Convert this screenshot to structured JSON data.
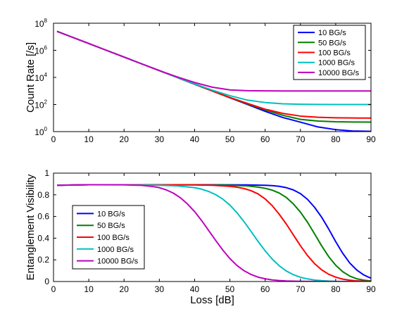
{
  "colors": [
    "#0000ff",
    "#007f00",
    "#ff0000",
    "#00bfbf",
    "#bf00bf"
  ],
  "chart_data": [
    {
      "type": "line",
      "xlabel": "",
      "ylabel": "Count Rate [/s]",
      "xlim": [
        0,
        90
      ],
      "ylim": [
        1,
        100000000
      ],
      "yscale": "log",
      "xticks": [
        0,
        10,
        20,
        30,
        40,
        50,
        60,
        70,
        80,
        90
      ],
      "yticks": [
        1,
        100,
        10000,
        1000000,
        100000000
      ],
      "ytick_labels": [
        {
          "base": "10",
          "exp": "0"
        },
        {
          "base": "10",
          "exp": "2"
        },
        {
          "base": "10",
          "exp": "4"
        },
        {
          "base": "10",
          "exp": "6"
        },
        {
          "base": "10",
          "exp": "8"
        }
      ],
      "grid": false,
      "legend_position": "top-right",
      "series": [
        {
          "name": "10 BG/s",
          "x": [
            1,
            5,
            10,
            15,
            20,
            25,
            30,
            35,
            40,
            45,
            50,
            55,
            60,
            65,
            70,
            75,
            80,
            85,
            90
          ],
          "y": [
            25118864,
            10000000,
            3162278,
            1000000,
            316228,
            100000,
            31623,
            10000,
            3162,
            1000,
            316,
            100,
            31.6,
            11.0,
            5.0,
            2.2,
            1.4,
            1.1,
            1.05
          ]
        },
        {
          "name": "50 BG/s",
          "x": [
            1,
            5,
            10,
            15,
            20,
            25,
            30,
            35,
            40,
            45,
            50,
            55,
            60,
            65,
            70,
            75,
            80,
            85,
            90
          ],
          "y": [
            25118864,
            10000000,
            3162278,
            1000000,
            316228,
            100000,
            31623,
            10000,
            3162,
            1000,
            320,
            110,
            40,
            16,
            8.0,
            6.0,
            5.3,
            5.1,
            5.0
          ]
        },
        {
          "name": "100 BG/s",
          "x": [
            1,
            5,
            10,
            15,
            20,
            25,
            30,
            35,
            40,
            45,
            50,
            55,
            60,
            65,
            70,
            75,
            80,
            85,
            90
          ],
          "y": [
            25118864,
            10000000,
            3162278,
            1000000,
            316228,
            100000,
            31623,
            10000,
            3170,
            1010,
            330,
            120,
            45,
            22,
            14,
            11.5,
            10.5,
            10.1,
            10.0
          ]
        },
        {
          "name": "1000 BG/s",
          "x": [
            1,
            5,
            10,
            15,
            20,
            25,
            30,
            35,
            40,
            45,
            50,
            55,
            60,
            65,
            70,
            75,
            80,
            85,
            90
          ],
          "y": [
            25118864,
            10000000,
            3162278,
            1000000,
            316228,
            100000,
            31623,
            10000,
            3300,
            1150,
            450,
            210,
            140,
            112,
            104,
            101,
            100,
            100,
            100
          ]
        },
        {
          "name": "10000 BG/s",
          "x": [
            1,
            5,
            10,
            15,
            20,
            25,
            30,
            35,
            40,
            45,
            50,
            55,
            60,
            65,
            70,
            75,
            80,
            85,
            90
          ],
          "y": [
            25118864,
            10000000,
            3162278,
            1000000,
            316228,
            100000,
            31800,
            11000,
            4200,
            1900,
            1200,
            1050,
            1010,
            1000,
            1000,
            1000,
            1000,
            1000,
            1000
          ]
        }
      ]
    },
    {
      "type": "line",
      "xlabel": "Loss [dB]",
      "ylabel": "Entanglement Visibility",
      "xlim": [
        0,
        90
      ],
      "ylim": [
        0,
        1
      ],
      "xticks": [
        0,
        10,
        20,
        30,
        40,
        50,
        60,
        70,
        80,
        90
      ],
      "yticks": [
        0,
        0.2,
        0.4,
        0.6,
        0.8,
        1
      ],
      "ytick_labels": [
        "0",
        "0.2",
        "0.4",
        "0.6",
        "0.8",
        "1"
      ],
      "grid": false,
      "legend_position": "middle-left",
      "series": [
        {
          "name": "10 BG/s",
          "x": [
            1,
            10,
            20,
            30,
            40,
            50,
            55,
            60,
            62,
            64,
            66,
            68,
            70,
            72,
            74,
            76,
            78,
            80,
            82,
            84,
            86,
            88,
            90
          ],
          "y": [
            0.888,
            0.893,
            0.893,
            0.893,
            0.893,
            0.892,
            0.891,
            0.888,
            0.885,
            0.878,
            0.866,
            0.845,
            0.811,
            0.758,
            0.685,
            0.594,
            0.485,
            0.368,
            0.26,
            0.17,
            0.105,
            0.06,
            0.03
          ]
        },
        {
          "name": "50 BG/s",
          "x": [
            1,
            10,
            20,
            30,
            40,
            50,
            55,
            58,
            60,
            62,
            64,
            66,
            68,
            70,
            72,
            74,
            76,
            78,
            80,
            82,
            84,
            86,
            88,
            90
          ],
          "y": [
            0.888,
            0.893,
            0.893,
            0.893,
            0.892,
            0.888,
            0.882,
            0.871,
            0.86,
            0.843,
            0.816,
            0.775,
            0.716,
            0.64,
            0.547,
            0.44,
            0.33,
            0.23,
            0.15,
            0.09,
            0.05,
            0.025,
            0.012,
            0.005
          ]
        },
        {
          "name": "100 BG/s",
          "x": [
            1,
            10,
            20,
            30,
            40,
            45,
            50,
            52,
            54,
            56,
            58,
            60,
            62,
            64,
            66,
            68,
            70,
            72,
            74,
            76,
            78,
            80,
            82,
            84,
            86,
            88,
            90
          ],
          "y": [
            0.888,
            0.893,
            0.893,
            0.893,
            0.891,
            0.888,
            0.878,
            0.87,
            0.858,
            0.838,
            0.808,
            0.762,
            0.7,
            0.62,
            0.53,
            0.43,
            0.33,
            0.24,
            0.165,
            0.108,
            0.067,
            0.04,
            0.022,
            0.012,
            0.006,
            0.003,
            0.001
          ]
        },
        {
          "name": "1000 BG/s",
          "x": [
            1,
            10,
            20,
            30,
            35,
            40,
            42,
            44,
            46,
            48,
            50,
            52,
            54,
            56,
            58,
            60,
            62,
            64,
            66,
            68,
            70,
            72,
            74,
            76,
            78,
            80,
            85,
            90
          ],
          "y": [
            0.888,
            0.893,
            0.893,
            0.888,
            0.882,
            0.866,
            0.852,
            0.831,
            0.801,
            0.76,
            0.705,
            0.635,
            0.553,
            0.462,
            0.37,
            0.283,
            0.207,
            0.145,
            0.097,
            0.063,
            0.039,
            0.024,
            0.014,
            0.008,
            0.004,
            0.002,
            0.001,
            0.0
          ]
        },
        {
          "name": "10000 BG/s",
          "x": [
            1,
            10,
            20,
            25,
            28,
            30,
            32,
            34,
            36,
            38,
            40,
            42,
            44,
            46,
            48,
            50,
            52,
            54,
            56,
            58,
            60,
            62,
            64,
            66,
            68,
            70,
            75,
            80,
            90
          ],
          "y": [
            0.888,
            0.893,
            0.892,
            0.887,
            0.877,
            0.866,
            0.845,
            0.815,
            0.772,
            0.715,
            0.645,
            0.562,
            0.47,
            0.378,
            0.29,
            0.212,
            0.148,
            0.1,
            0.065,
            0.04,
            0.025,
            0.015,
            0.009,
            0.005,
            0.003,
            0.002,
            0.0,
            0.0,
            0.0
          ]
        }
      ]
    }
  ]
}
